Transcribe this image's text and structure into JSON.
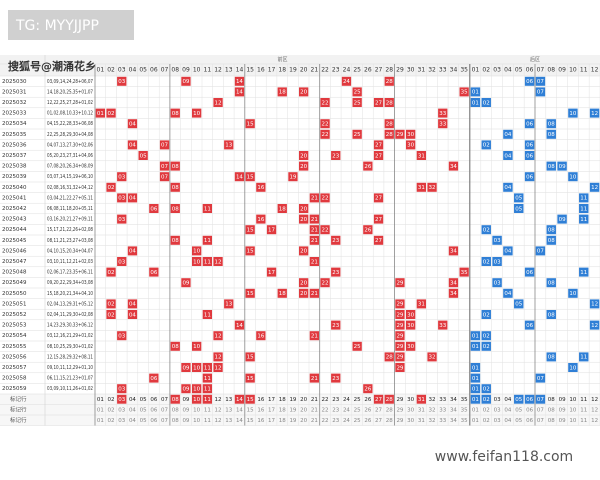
{
  "watermark_top": "TG: MYYJJPP",
  "watermark_source": "搜狐号@潮涌花乡",
  "watermark_site": "www.feifan118.com",
  "sections": {
    "front": "前区",
    "back": "后区"
  },
  "front_numbers": [
    "01",
    "02",
    "03",
    "04",
    "05",
    "06",
    "07",
    "08",
    "09",
    "10",
    "11",
    "12",
    "13",
    "14",
    "15",
    "16",
    "17",
    "18",
    "19",
    "20",
    "21",
    "22",
    "23",
    "24",
    "25",
    "26",
    "27",
    "28",
    "29",
    "30",
    "31",
    "32",
    "33",
    "34",
    "35"
  ],
  "back_numbers": [
    "01",
    "02",
    "03",
    "04",
    "05",
    "06",
    "07",
    "08",
    "09",
    "10",
    "11",
    "12"
  ],
  "rows": [
    {
      "issue": "2025030",
      "draw": "03,09,14,24,28+06,07",
      "front": [
        "03",
        "09",
        "14",
        "24",
        "28"
      ],
      "back": [
        "06",
        "07"
      ]
    },
    {
      "issue": "2025031",
      "draw": "14,18,20,25,35+01,07",
      "front": [
        "14",
        "18",
        "20",
        "25",
        "35"
      ],
      "back": [
        "01",
        "07"
      ]
    },
    {
      "issue": "2025032",
      "draw": "12,22,25,27,28+01,02",
      "front": [
        "12",
        "22",
        "25",
        "27",
        "28"
      ],
      "back": [
        "01",
        "02"
      ]
    },
    {
      "issue": "2025033",
      "draw": "01,02,08,10,33+10,12",
      "front": [
        "01",
        "02",
        "08",
        "10",
        "33"
      ],
      "back": [
        "10",
        "12"
      ]
    },
    {
      "issue": "2025034",
      "draw": "04,15,22,28,33+06,08",
      "front": [
        "04",
        "15",
        "22",
        "28",
        "33"
      ],
      "back": [
        "06",
        "08"
      ]
    },
    {
      "issue": "2025035",
      "draw": "22,25,28,29,30+04,08",
      "front": [
        "22",
        "25",
        "28",
        "29",
        "30"
      ],
      "back": [
        "04",
        "08"
      ]
    },
    {
      "issue": "2025036",
      "draw": "04,07,13,27,30+02,06",
      "front": [
        "04",
        "07",
        "13",
        "27",
        "30"
      ],
      "back": [
        "02",
        "06"
      ]
    },
    {
      "issue": "2025037",
      "draw": "05,20,23,27,31+04,06",
      "front": [
        "05",
        "20",
        "23",
        "27",
        "31"
      ],
      "back": [
        "04",
        "06"
      ]
    },
    {
      "issue": "2025038",
      "draw": "07,08,20,26,34+08,09",
      "front": [
        "07",
        "08",
        "20",
        "26",
        "34"
      ],
      "back": [
        "08",
        "09"
      ]
    },
    {
      "issue": "2025039",
      "draw": "03,07,14,15,19+06,10",
      "front": [
        "03",
        "07",
        "14",
        "15",
        "19"
      ],
      "back": [
        "06",
        "10"
      ]
    },
    {
      "issue": "2025040",
      "draw": "02,08,16,31,32+04,12",
      "front": [
        "02",
        "08",
        "16",
        "31",
        "32"
      ],
      "back": [
        "04",
        "12"
      ]
    },
    {
      "issue": "2025041",
      "draw": "03,04,21,22,27+05,11",
      "front": [
        "03",
        "04",
        "21",
        "22",
        "27"
      ],
      "back": [
        "05",
        "11"
      ]
    },
    {
      "issue": "2025042",
      "draw": "06,08,11,18,20+05,11",
      "front": [
        "06",
        "08",
        "11",
        "18",
        "20"
      ],
      "back": [
        "05",
        "11"
      ]
    },
    {
      "issue": "2025043",
      "draw": "03,16,20,21,27+09,11",
      "front": [
        "03",
        "16",
        "20",
        "21",
        "27"
      ],
      "back": [
        "09",
        "11"
      ]
    },
    {
      "issue": "2025044",
      "draw": "15,17,21,22,26+02,08",
      "front": [
        "15",
        "17",
        "21",
        "22",
        "26"
      ],
      "back": [
        "02",
        "08"
      ]
    },
    {
      "issue": "2025045",
      "draw": "08,11,21,23,27+03,08",
      "front": [
        "08",
        "11",
        "21",
        "23",
        "27"
      ],
      "back": [
        "03",
        "08"
      ]
    },
    {
      "issue": "2025046",
      "draw": "04,10,15,20,34+04,07",
      "front": [
        "04",
        "10",
        "15",
        "20",
        "34"
      ],
      "back": [
        "04",
        "07"
      ]
    },
    {
      "issue": "2025047",
      "draw": "03,10,11,12,21+02,03",
      "front": [
        "03",
        "10",
        "11",
        "12",
        "21"
      ],
      "back": [
        "02",
        "03"
      ]
    },
    {
      "issue": "2025048",
      "draw": "02,06,17,23,35+06,11",
      "front": [
        "02",
        "06",
        "17",
        "23",
        "35"
      ],
      "back": [
        "06",
        "11"
      ]
    },
    {
      "issue": "2025049",
      "draw": "09,20,22,29,34+03,08",
      "front": [
        "09",
        "20",
        "22",
        "29",
        "34"
      ],
      "back": [
        "03",
        "08"
      ]
    },
    {
      "issue": "2025050",
      "draw": "15,18,20,21,34+04,10",
      "front": [
        "15",
        "18",
        "20",
        "21",
        "34"
      ],
      "back": [
        "04",
        "10"
      ]
    },
    {
      "issue": "2025051",
      "draw": "02,04,13,29,31+05,12",
      "front": [
        "02",
        "04",
        "13",
        "29",
        "31"
      ],
      "back": [
        "05",
        "12"
      ]
    },
    {
      "issue": "2025052",
      "draw": "02,04,11,29,30+02,08",
      "front": [
        "02",
        "04",
        "11",
        "29",
        "30"
      ],
      "back": [
        "02",
        "08"
      ]
    },
    {
      "issue": "2025053",
      "draw": "14,23,29,30,33+06,12",
      "front": [
        "14",
        "23",
        "29",
        "30",
        "33"
      ],
      "back": [
        "06",
        "12"
      ]
    },
    {
      "issue": "2025054",
      "draw": "03,12,16,21,29+01,02",
      "front": [
        "03",
        "12",
        "16",
        "21",
        "29"
      ],
      "back": [
        "01",
        "02"
      ]
    },
    {
      "issue": "2025055",
      "draw": "08,10,25,29,30+01,02",
      "front": [
        "08",
        "10",
        "25",
        "29",
        "30"
      ],
      "back": [
        "01",
        "02"
      ]
    },
    {
      "issue": "2025056",
      "draw": "12,15,28,29,32+08,11",
      "front": [
        "12",
        "15",
        "28",
        "29",
        "32"
      ],
      "back": [
        "08",
        "11"
      ]
    },
    {
      "issue": "2025057",
      "draw": "09,10,11,12,29+01,10",
      "front": [
        "09",
        "10",
        "11",
        "12",
        "29"
      ],
      "back": [
        "01",
        "10"
      ]
    },
    {
      "issue": "2025058",
      "draw": "06,11,15,21,23+01,07",
      "front": [
        "06",
        "11",
        "15",
        "21",
        "23"
      ],
      "back": [
        "01",
        "07"
      ]
    },
    {
      "issue": "2025059",
      "draw": "03,09,10,11,26+01,02",
      "front": [
        "03",
        "09",
        "10",
        "11",
        "26"
      ],
      "back": [
        "01",
        "02"
      ]
    }
  ],
  "marker_rows": [
    {
      "label": "标记行",
      "front": [
        "03",
        "08",
        "10",
        "11",
        "14",
        "15",
        "27",
        "28",
        "31"
      ],
      "back": [
        "01",
        "02",
        "05",
        "06",
        "07"
      ]
    },
    {
      "label": "标记行"
    },
    {
      "label": "标记行"
    }
  ]
}
